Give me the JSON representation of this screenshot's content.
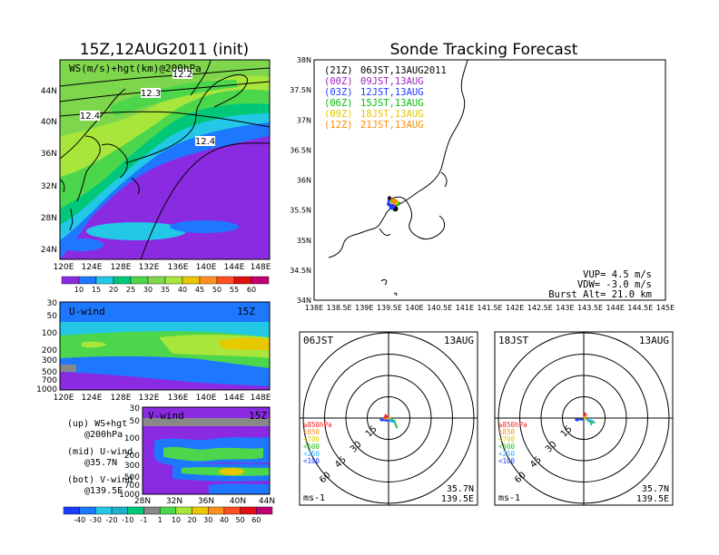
{
  "left": {
    "title": "15Z,12AUG2011 (init)",
    "map": {
      "label": "WS(m/s)+hgt(km)@200hPa",
      "lat_ticks": [
        "44N",
        "40N",
        "36N",
        "32N",
        "28N",
        "24N"
      ],
      "lon_ticks": [
        "120E",
        "124E",
        "128E",
        "132E",
        "136E",
        "140E",
        "144E",
        "148E"
      ],
      "contour_labels": [
        "12.2",
        "12.3",
        "12.4",
        "12.4"
      ]
    },
    "ws_colorbar": [
      "10",
      "15",
      "20",
      "25",
      "30",
      "35",
      "40",
      "45",
      "50",
      "55",
      "60"
    ],
    "u_panel": {
      "label": "U-wind",
      "time": "15Z",
      "p_ticks": [
        "30",
        "50",
        "100",
        "200",
        "300",
        "500",
        "700",
        "1000"
      ],
      "lon_ticks": [
        "120E",
        "124E",
        "128E",
        "132E",
        "136E",
        "140E",
        "144E",
        "148E"
      ]
    },
    "v_panel": {
      "label": "V-wind",
      "time": "15Z",
      "p_ticks": [
        "30",
        "50",
        "100",
        "200",
        "300",
        "500",
        "700",
        "1000"
      ],
      "lat_ticks": [
        "28N",
        "32N",
        "36N",
        "40N",
        "44N"
      ]
    },
    "legend_notes": {
      "up_1": "(up) WS+hgt",
      "up_2": "@200hPa",
      "mid_1": "(mid) U-wind",
      "mid_2": "@35.7N",
      "bot_1": "(bot) V-wind",
      "bot_2": "@139.5E"
    },
    "wind_colorbar": [
      "-40",
      "-30",
      "-20",
      "-10",
      "-1",
      "1",
      "10",
      "20",
      "30",
      "40",
      "50",
      "60"
    ]
  },
  "right": {
    "title": "Sonde Tracking Forecast",
    "launches": [
      {
        "code": "(21Z)",
        "time": "06JST,13AUG2011",
        "color": "#000000"
      },
      {
        "code": "(00Z)",
        "time": "09JST,13AUG",
        "color": "#a020c0"
      },
      {
        "code": "(03Z)",
        "time": "12JST,13AUG",
        "color": "#1e3cff"
      },
      {
        "code": "(06Z)",
        "time": "15JST,13AUG",
        "color": "#00c000"
      },
      {
        "code": "(09Z)",
        "time": "18JST,13AUG",
        "color": "#e8c800"
      },
      {
        "code": "(12Z)",
        "time": "21JST,13AUG",
        "color": "#ff8c00"
      }
    ],
    "lat_ticks": [
      "38N",
      "37.5N",
      "37N",
      "36.5N",
      "36N",
      "35.5N",
      "35N",
      "34.5N",
      "34N"
    ],
    "lon_ticks": [
      "138E",
      "138.5E",
      "139E",
      "139.5E",
      "140E",
      "140.5E",
      "141E",
      "141.5E",
      "142E",
      "142.5E",
      "143E",
      "143.5E",
      "144E",
      "144.5E",
      "145E"
    ],
    "stats": {
      "vup": "VUP= 4.5 m/s",
      "vdw": "VDW= -3.0 m/s",
      "burst": "Burst Alt= 21.0 km"
    }
  },
  "hodographs": [
    {
      "time": "06JST",
      "date": "13AUG",
      "lat": "35.7N",
      "lon": "139.5E",
      "unit": "ms-1"
    },
    {
      "time": "18JST",
      "date": "13AUG",
      "lat": "35.7N",
      "lon": "139.5E",
      "unit": "ms-1"
    }
  ],
  "hodo_rings": [
    "15",
    "30",
    "45",
    "60"
  ],
  "hodo_levels": [
    {
      "label": "≥850hPa",
      "color": "#ff2020"
    },
    {
      "label": "<850",
      "color": "#ff9020"
    },
    {
      "label": "<700",
      "color": "#d8d000"
    },
    {
      "label": "<500",
      "color": "#20c020"
    },
    {
      "label": "<250",
      "color": "#20b0ff"
    },
    {
      "label": "<100",
      "color": "#2040ff"
    }
  ],
  "chart_data": [
    {
      "type": "scatter",
      "title": "Sonde Tracking Forecast",
      "xlabel": "",
      "ylabel": "",
      "xlim": [
        138,
        145
      ],
      "ylim": [
        34,
        38
      ],
      "grid": false,
      "legend_placement": "top-left",
      "launch_point": {
        "x": 139.5,
        "y": 35.7
      },
      "series": [
        {
          "name": "(21Z) 06JST,13AUG2011",
          "x": [
            139.5,
            139.48,
            139.56,
            139.62
          ],
          "y": [
            35.7,
            35.62,
            35.55,
            35.52
          ]
        },
        {
          "name": "(00Z) 09JST,13AUG",
          "x": [
            139.5,
            139.47,
            139.56
          ],
          "y": [
            35.7,
            35.6,
            35.56
          ]
        },
        {
          "name": "(03Z) 12JST,13AUG",
          "x": [
            139.5,
            139.47,
            139.55
          ],
          "y": [
            35.7,
            35.59,
            35.55
          ]
        },
        {
          "name": "(06Z) 15JST,13AUG",
          "x": [
            139.5,
            139.55,
            139.66
          ],
          "y": [
            35.7,
            35.63,
            35.61
          ]
        },
        {
          "name": "(09Z) 18JST,13AUG",
          "x": [
            139.5,
            139.57,
            139.63
          ],
          "y": [
            35.7,
            35.64,
            35.63
          ]
        },
        {
          "name": "(12Z) 21JST,13AUG",
          "x": [
            139.5,
            139.56,
            139.6
          ],
          "y": [
            35.7,
            35.65,
            35.65
          ]
        }
      ]
    },
    {
      "type": "line",
      "title": "06JST 13AUG",
      "xlabel": "ms-1",
      "ylabel": "",
      "rings": [
        15,
        30,
        45,
        60
      ],
      "series": [
        {
          "name": "≥850hPa",
          "u": [
            0,
            -2,
            -3
          ],
          "v": [
            0,
            2,
            0
          ]
        },
        {
          "name": "<850",
          "u": [
            -3,
            -2,
            0
          ],
          "v": [
            0,
            -1,
            0
          ]
        },
        {
          "name": "<700",
          "u": [
            0,
            2
          ],
          "v": [
            0,
            -1
          ]
        },
        {
          "name": "<500",
          "u": [
            2,
            4,
            6
          ],
          "v": [
            -1,
            -2,
            -7
          ]
        },
        {
          "name": "<250",
          "u": [
            2,
            0,
            5
          ],
          "v": [
            -1,
            -2,
            -3
          ]
        },
        {
          "name": "<100",
          "u": [
            0,
            -6,
            -4
          ],
          "v": [
            -2,
            -1,
            -2
          ]
        }
      ]
    },
    {
      "type": "line",
      "title": "18JST 13AUG",
      "xlabel": "ms-1",
      "ylabel": "",
      "rings": [
        15,
        30,
        45,
        60
      ],
      "series": [
        {
          "name": "≥850hPa",
          "u": [
            0,
            1,
            2
          ],
          "v": [
            0,
            3,
            2
          ]
        },
        {
          "name": "<850",
          "u": [
            2,
            1,
            0
          ],
          "v": [
            2,
            1,
            0
          ]
        },
        {
          "name": "<700",
          "u": [
            0,
            2
          ],
          "v": [
            0,
            -1
          ]
        },
        {
          "name": "<500",
          "u": [
            2,
            5,
            8
          ],
          "v": [
            -1,
            -3,
            -3
          ]
        },
        {
          "name": "<250",
          "u": [
            2,
            6,
            5
          ],
          "v": [
            -1,
            -2,
            -5
          ]
        },
        {
          "name": "<100",
          "u": [
            0,
            -6,
            -4
          ],
          "v": [
            -1,
            -1,
            -2
          ]
        }
      ]
    }
  ]
}
